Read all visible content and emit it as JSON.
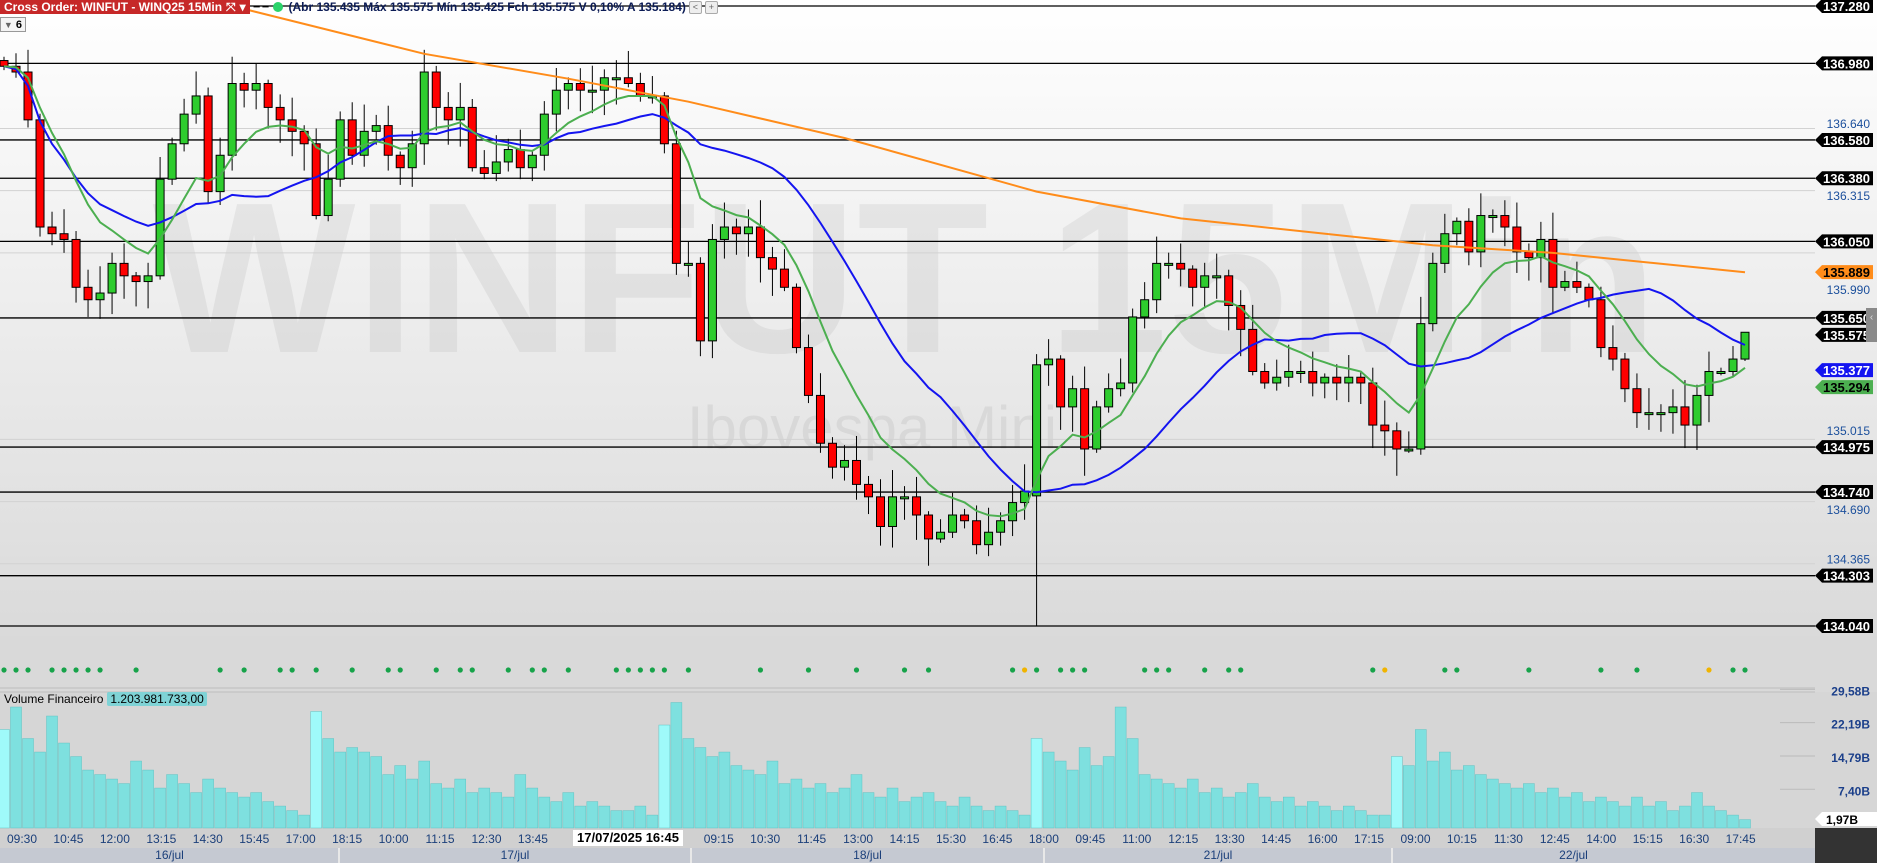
{
  "header": {
    "order_label": "Cross Order: WINFUT - WINQ25 15Min",
    "ohlc_text": "(Abr 135.435 Máx 135.575 Mín 135.425 Fch 135.575 V 0,10% A 135.184)",
    "prev_button": "<",
    "add_button": "+",
    "badge": "6",
    "tool_icon": "crosshair-icon",
    "dropdown_icon": "chevron-down-icon"
  },
  "watermark": {
    "title": "WINFUT 15Min",
    "subtitle": "Ibovespa Mini"
  },
  "volume": {
    "label": "Volume Financeiro",
    "value": "1.203.981.733,00",
    "axis": [
      "29,58B",
      "22,19B",
      "14,79B",
      "7,40B"
    ],
    "axis_values": [
      29.58,
      22.19,
      14.79,
      7.4
    ],
    "current_tag": "1,97B"
  },
  "tooltip": "17/07/2025 16:45",
  "colors": {
    "up": "#2ecc2e",
    "down": "#ff0000",
    "ma_fast": "#4caf50",
    "ma_mid": "#1414f0",
    "ma_long": "#ff8c1a",
    "volume": "#7ee0df",
    "signal": "#17a34a",
    "signal_alt": "#f0b400"
  },
  "chart_data": {
    "type": "candlestick",
    "ylim": [
      134.04,
      137.28
    ],
    "last": {
      "open": 135.435,
      "high": 135.575,
      "low": 135.425,
      "close": 135.575
    },
    "days": [
      "16/jul",
      "17/jul",
      "18/jul",
      "21/jul",
      "22/jul"
    ],
    "closes": [
      [
        136.965,
        136.935,
        136.685,
        136.125,
        136.09,
        136.06,
        135.81,
        135.745,
        135.78,
        135.935,
        135.87,
        135.84,
        135.87,
        136.375,
        136.56,
        136.715,
        136.81,
        136.31,
        136.5,
        136.875,
        136.84,
        136.875,
        136.75,
        136.685,
        136.625,
        136.56
      ],
      [
        136.185,
        136.375,
        136.685,
        136.5,
        136.625,
        136.655,
        136.5,
        136.435,
        136.56,
        136.935,
        136.75,
        136.685,
        136.75,
        136.435,
        136.405,
        136.465,
        136.53,
        136.435,
        136.5,
        136.715,
        136.84,
        136.875,
        136.84,
        136.84,
        136.905,
        136.905,
        136.875,
        136.81,
        136.81
      ],
      [
        136.56,
        135.935,
        135.935,
        135.53,
        136.06,
        136.125,
        136.09,
        136.125,
        135.965,
        135.905,
        135.81,
        135.495,
        135.245,
        134.995,
        134.87,
        134.905,
        134.78,
        134.715,
        134.56,
        134.715,
        134.715,
        134.62,
        134.495,
        134.53,
        134.62,
        134.59,
        134.465,
        134.53,
        134.59,
        134.685,
        134.745
      ],
      [
        135.405,
        135.435,
        135.185,
        135.28,
        134.965,
        135.185,
        135.28,
        135.31,
        135.655,
        135.745,
        135.935,
        135.935,
        135.905,
        135.81,
        135.87,
        135.87,
        135.715,
        135.59,
        135.37,
        135.31,
        135.34,
        135.37,
        135.37,
        135.31,
        135.34,
        135.31,
        135.34,
        135.31,
        135.09,
        135.06
      ],
      [
        134.965,
        134.965,
        135.62,
        135.935,
        136.09,
        136.155,
        135.995,
        136.185,
        136.185,
        136.125,
        135.995,
        135.965,
        136.06,
        135.81,
        135.84,
        135.81,
        135.745,
        135.495,
        135.435,
        135.28,
        135.155,
        135.155,
        135.155,
        135.185,
        135.09,
        135.245,
        135.37,
        135.37,
        135.435,
        135.575
      ]
    ],
    "low_overrides": [
      [
        86,
        134.04
      ]
    ],
    "volumes_B": [
      [
        22,
        27,
        20,
        17,
        25,
        19,
        16,
        13,
        12,
        11,
        10,
        15,
        13,
        9,
        12,
        10,
        8,
        11,
        9,
        8,
        7,
        8,
        6,
        5,
        4,
        3
      ],
      [
        26,
        20,
        17,
        18,
        17,
        16,
        12,
        14,
        11,
        15,
        10,
        9,
        11,
        8,
        9,
        8,
        7,
        12,
        9,
        7,
        6,
        8,
        5,
        6,
        5,
        4,
        4,
        5,
        3
      ],
      [
        23,
        28,
        20,
        18,
        16,
        17,
        14,
        13,
        12,
        15,
        10,
        11,
        9,
        10,
        8,
        9,
        12,
        8,
        7,
        9,
        6,
        7,
        8,
        6,
        5,
        7,
        5,
        4,
        5,
        4,
        3
      ],
      [
        20,
        17,
        15,
        13,
        18,
        14,
        16,
        27,
        20,
        12,
        11,
        10,
        9,
        11,
        8,
        9,
        7,
        8,
        10,
        7,
        6,
        7,
        5,
        6,
        5,
        4,
        5,
        4,
        3,
        3
      ],
      [
        16,
        14,
        22,
        15,
        17,
        13,
        14,
        12,
        11,
        10,
        9,
        10,
        8,
        9,
        7,
        8,
        6,
        7,
        6,
        5,
        7,
        5,
        6,
        4,
        5,
        8,
        5,
        4,
        3,
        2
      ]
    ],
    "ma_long_points": [
      [
        19,
        137.28
      ],
      [
        35,
        137.03
      ],
      [
        47,
        136.9
      ],
      [
        57,
        136.78
      ],
      [
        70,
        136.59
      ],
      [
        86,
        136.31
      ],
      [
        98,
        136.17
      ],
      [
        119,
        136.03
      ],
      [
        129,
        135.99
      ],
      [
        145,
        135.889
      ]
    ],
    "signals_green": [
      0,
      1,
      2,
      4,
      5,
      6,
      7,
      8,
      11,
      18,
      20,
      23,
      24,
      26,
      29,
      32,
      33,
      36,
      38,
      39,
      42,
      44,
      45,
      47,
      51,
      52,
      53,
      54,
      55,
      57,
      63,
      67,
      71,
      75,
      77,
      84,
      86,
      88,
      89,
      90,
      95,
      96,
      97,
      100,
      102,
      103,
      114,
      120,
      121,
      127,
      133,
      136,
      144,
      145
    ],
    "signals_yellow": [
      85,
      115,
      142
    ],
    "level_lines": [
      137.28,
      136.98,
      136.58,
      136.38,
      136.05,
      135.65,
      134.975,
      134.74,
      134.303,
      134.04
    ],
    "level_labels": [
      "137.280",
      "136.980",
      "136.580",
      "136.380",
      "136.050",
      "135.650",
      "134.975",
      "134.740",
      "134.303",
      "134.040"
    ],
    "grid_values": [
      136.64,
      136.315,
      135.99,
      135.015,
      134.69,
      134.365
    ],
    "grid_labels": [
      "136.640",
      "136.315",
      "135.990",
      "135.015",
      "134.690",
      "134.365"
    ],
    "last_price_label": "135.575",
    "ma_long_label": "135.889",
    "ma_mid_label": "135.377",
    "ma_fast_label": "135.294",
    "time_labels": [
      "09:30",
      "10:45",
      "12:00",
      "13:15",
      "14:30",
      "15:45",
      "17:00",
      "18:15",
      "10:00",
      "11:15",
      "12:30",
      "13:45",
      "",
      "",
      "",
      "09:15",
      "10:30",
      "11:45",
      "13:00",
      "14:15",
      "15:30",
      "16:45",
      "18:00",
      "09:45",
      "11:00",
      "12:15",
      "13:30",
      "14:45",
      "16:00",
      "17:15",
      "09:00",
      "10:15",
      "11:30",
      "12:45",
      "14:00",
      "15:15",
      "16:30",
      "17:45"
    ]
  }
}
